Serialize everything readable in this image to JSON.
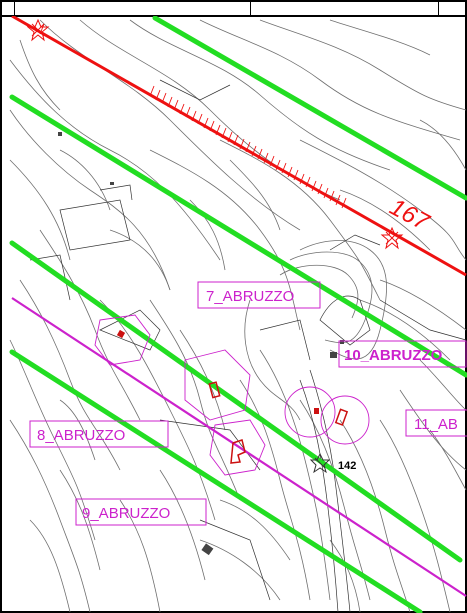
{
  "colors": {
    "contour": "#6f6f6f",
    "route_green": "#22dd22",
    "route_red": "#ee1111",
    "route_magenta": "#cc22cc",
    "label_magenta": "#cc22cc",
    "building_red": "#cc1111",
    "building_dark": "#444444"
  },
  "labels": {
    "abruzzo_7": "7_ABRUZZO",
    "abruzzo_8": "8_ABRUZZO",
    "abruzzo_9": "9_ABRUZZO",
    "abruzzo_10": "10_ABRUZZO",
    "abruzzo_11": "11_AB",
    "km_167": "167",
    "marker_142": "142"
  },
  "icons": {
    "survey_marker": "star-hatched-icon"
  }
}
